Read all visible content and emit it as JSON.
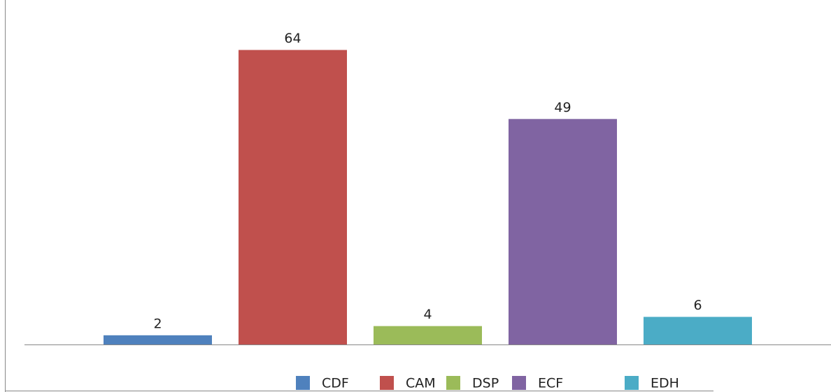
{
  "chart_data": {
    "type": "bar",
    "categories": [
      null
    ],
    "series": [
      {
        "name": "CDF",
        "color": "#4f81bd",
        "values": [
          2
        ]
      },
      {
        "name": "CAM",
        "color": "#c0504d",
        "values": [
          64
        ]
      },
      {
        "name": "DSP",
        "color": "#9bbb59",
        "values": [
          4
        ]
      },
      {
        "name": "ECF",
        "color": "#8064a2",
        "values": [
          49
        ]
      },
      {
        "name": "EDH",
        "color": "#4bacc6",
        "values": [
          6
        ]
      }
    ],
    "ylim": [
      0,
      70
    ],
    "legend": "bottom"
  }
}
